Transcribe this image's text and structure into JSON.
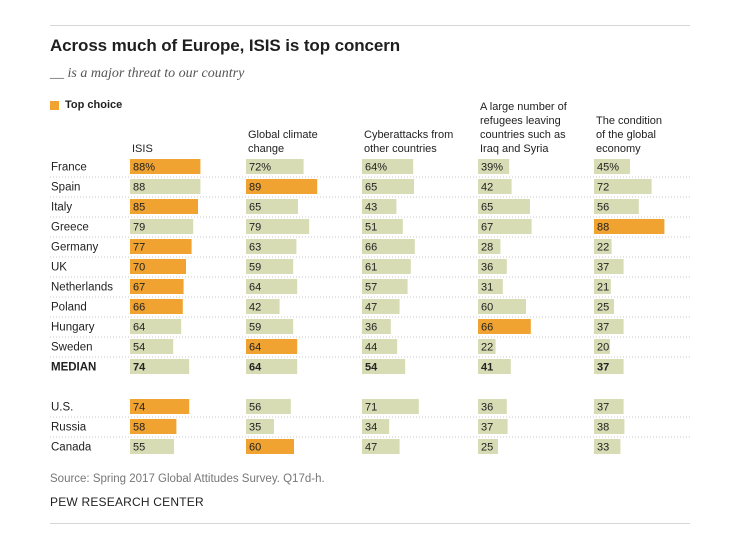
{
  "header": {
    "title": "Across much of Europe, ISIS is top concern",
    "subtitle": "__ is a major threat to our country",
    "legend_label": "Top choice"
  },
  "footer": {
    "source": "Source: Spring 2017 Global Attitudes Survey. Q17d-h.",
    "credit": "PEW RESEARCH CENTER"
  },
  "colors": {
    "top_choice": "#f0a330",
    "other": "#d8dcb4",
    "divider": "#c8c8c8"
  },
  "chart_data": {
    "type": "table",
    "title": "Across much of Europe, ISIS is top concern",
    "subtitle": "__ is a major threat to our country",
    "unit": "%",
    "columns": [
      "ISIS",
      "Global climate change",
      "Cyberattacks from other countries",
      "A large number of refugees leaving countries such as Iraq and Syria",
      "The condition of the global economy"
    ],
    "column_header_lines": [
      [
        "ISIS"
      ],
      [
        "Global climate",
        "change"
      ],
      [
        "Cyberattacks from",
        "other countries"
      ],
      [
        "A large number of",
        "refugees leaving",
        "countries such as",
        "Iraq and Syria"
      ],
      [
        "The condition",
        "of the global",
        "economy"
      ]
    ],
    "rows": [
      {
        "label": "France",
        "values": [
          88,
          72,
          64,
          39,
          45
        ],
        "display": [
          "88%",
          "72%",
          "64%",
          "39%",
          "45%"
        ],
        "top": 0
      },
      {
        "label": "Spain",
        "values": [
          88,
          89,
          65,
          42,
          72
        ],
        "display": [
          "88",
          "89",
          "65",
          "42",
          "72"
        ],
        "top": 1
      },
      {
        "label": "Italy",
        "values": [
          85,
          65,
          43,
          65,
          56
        ],
        "display": [
          "85",
          "65",
          "43",
          "65",
          "56"
        ],
        "top": 0
      },
      {
        "label": "Greece",
        "values": [
          79,
          79,
          51,
          67,
          88
        ],
        "display": [
          "79",
          "79",
          "51",
          "67",
          "88"
        ],
        "top": 4
      },
      {
        "label": "Germany",
        "values": [
          77,
          63,
          66,
          28,
          22
        ],
        "display": [
          "77",
          "63",
          "66",
          "28",
          "22"
        ],
        "top": 0
      },
      {
        "label": "UK",
        "values": [
          70,
          59,
          61,
          36,
          37
        ],
        "display": [
          "70",
          "59",
          "61",
          "36",
          "37"
        ],
        "top": 0
      },
      {
        "label": "Netherlands",
        "values": [
          67,
          64,
          57,
          31,
          21
        ],
        "display": [
          "67",
          "64",
          "57",
          "31",
          "21"
        ],
        "top": 0
      },
      {
        "label": "Poland",
        "values": [
          66,
          42,
          47,
          60,
          25
        ],
        "display": [
          "66",
          "42",
          "47",
          "60",
          "25"
        ],
        "top": 0
      },
      {
        "label": "Hungary",
        "values": [
          64,
          59,
          36,
          66,
          37
        ],
        "display": [
          "64",
          "59",
          "36",
          "66",
          "37"
        ],
        "top": 3
      },
      {
        "label": "Sweden",
        "values": [
          54,
          64,
          44,
          22,
          20
        ],
        "display": [
          "54",
          "64",
          "44",
          "22",
          "20"
        ],
        "top": 1
      },
      {
        "label": "MEDIAN",
        "values": [
          74,
          64,
          54,
          41,
          37
        ],
        "display": [
          "74",
          "64",
          "54",
          "41",
          "37"
        ],
        "top": null,
        "bold": true
      },
      {
        "label": "U.S.",
        "values": [
          74,
          56,
          71,
          36,
          37
        ],
        "display": [
          "74",
          "56",
          "71",
          "36",
          "37"
        ],
        "top": 0
      },
      {
        "label": "Russia",
        "values": [
          58,
          35,
          34,
          37,
          38
        ],
        "display": [
          "58",
          "35",
          "34",
          "37",
          "38"
        ],
        "top": 0
      },
      {
        "label": "Canada",
        "values": [
          55,
          60,
          47,
          25,
          33
        ],
        "display": [
          "55",
          "60",
          "47",
          "25",
          "33"
        ],
        "top": 1
      }
    ]
  }
}
